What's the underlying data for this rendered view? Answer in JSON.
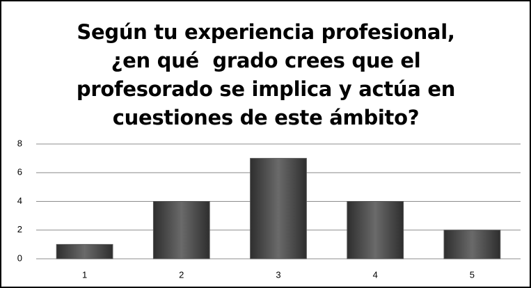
{
  "chart_data": {
    "type": "bar",
    "title": "Según tu experiencia profesional, ¿en qué  grado crees que el profesorado se implica y actúa en cuestiones de este ámbito?",
    "categories": [
      "1",
      "2",
      "3",
      "4",
      "5"
    ],
    "values": [
      1,
      4,
      7,
      4,
      2
    ],
    "color": "#555555",
    "ylim": [
      0,
      8
    ],
    "yticks": [
      0,
      2,
      4,
      6,
      8
    ],
    "grid": true
  }
}
